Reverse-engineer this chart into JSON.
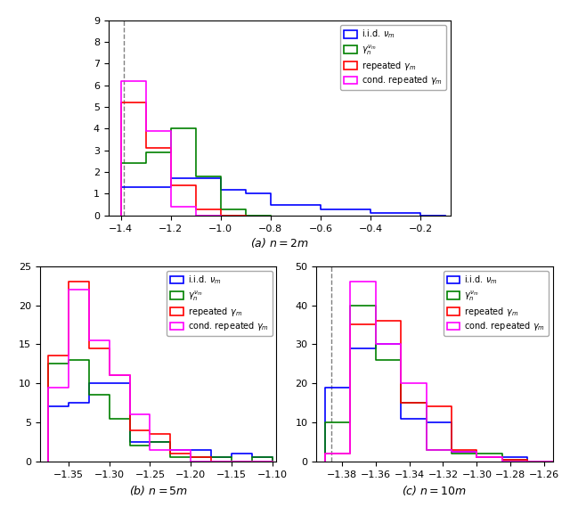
{
  "panel_a": {
    "title": "(a) $n = 2m$",
    "xlim": [
      -1.45,
      -0.08
    ],
    "ylim": [
      0,
      9
    ],
    "yticks": [
      0,
      1,
      2,
      3,
      4,
      5,
      6,
      7,
      8,
      9
    ],
    "xticks": [
      -1.4,
      -1.2,
      -1.0,
      -0.8,
      -0.6,
      -0.4,
      -0.2
    ],
    "dashed_x": -1.3863,
    "blue_bins": [
      -1.4,
      -1.3,
      -1.2,
      -1.1,
      -1.0,
      -0.9,
      -0.8,
      -0.7,
      -0.6,
      -0.5,
      -0.4,
      -0.3,
      -0.2,
      -0.1
    ],
    "blue_vals": [
      1.3,
      1.3,
      1.7,
      1.7,
      1.2,
      1.0,
      0.5,
      0.5,
      0.3,
      0.3,
      0.1,
      0.1,
      0.0
    ],
    "green_bins": [
      -1.4,
      -1.3,
      -1.2,
      -1.1,
      -1.0,
      -0.9,
      -0.8
    ],
    "green_vals": [
      2.4,
      2.9,
      4.0,
      1.8,
      0.3,
      0.0
    ],
    "red_bins": [
      -1.4,
      -1.3,
      -1.2,
      -1.1,
      -1.0,
      -0.9
    ],
    "red_vals": [
      5.2,
      3.1,
      1.4,
      0.3,
      0.0
    ],
    "magenta_bins": [
      -1.4,
      -1.3,
      -1.2,
      -1.1,
      -1.0
    ],
    "magenta_vals": [
      6.2,
      3.9,
      0.4,
      0.0
    ]
  },
  "panel_b": {
    "title": "(b) $n = 5m$",
    "xlim": [
      -1.385,
      -1.095
    ],
    "ylim": [
      0,
      25
    ],
    "yticks": [
      0,
      5,
      10,
      15,
      20,
      25
    ],
    "xticks": [
      -1.35,
      -1.3,
      -1.25,
      -1.2,
      -1.15,
      -1.1
    ],
    "dashed_x": -1.3863,
    "blue_bins": [
      -1.375,
      -1.35,
      -1.325,
      -1.3,
      -1.275,
      -1.25,
      -1.225,
      -1.2,
      -1.175,
      -1.15,
      -1.125,
      -1.1
    ],
    "blue_vals": [
      7.0,
      7.5,
      10.0,
      10.0,
      2.5,
      2.5,
      1.5,
      1.5,
      0.5,
      1.0,
      0.5
    ],
    "green_bins": [
      -1.375,
      -1.35,
      -1.325,
      -1.3,
      -1.275,
      -1.25,
      -1.225,
      -1.2,
      -1.175,
      -1.15,
      -1.125,
      -1.1
    ],
    "green_vals": [
      12.5,
      13.0,
      8.5,
      5.5,
      2.0,
      2.5,
      0.5,
      0.5,
      0.5,
      0.0,
      0.5
    ],
    "red_bins": [
      -1.375,
      -1.35,
      -1.325,
      -1.3,
      -1.275,
      -1.25,
      -1.225,
      -1.2,
      -1.175,
      -1.15,
      -1.125,
      -1.1
    ],
    "red_vals": [
      13.5,
      23.0,
      14.5,
      11.0,
      4.0,
      3.5,
      1.0,
      0.5,
      0.0,
      0.0,
      0.0
    ],
    "magenta_bins": [
      -1.375,
      -1.35,
      -1.325,
      -1.3,
      -1.275,
      -1.25,
      -1.225,
      -1.2,
      -1.175,
      -1.15,
      -1.125,
      -1.1
    ],
    "magenta_vals": [
      9.5,
      22.0,
      15.5,
      11.0,
      6.0,
      1.5,
      1.5,
      0.0,
      0.0,
      0.0,
      0.0
    ]
  },
  "panel_c": {
    "title": "(c) $n = 10m$",
    "xlim": [
      -1.395,
      -1.255
    ],
    "ylim": [
      0,
      50
    ],
    "yticks": [
      0,
      10,
      20,
      30,
      40,
      50
    ],
    "xticks": [
      -1.38,
      -1.36,
      -1.34,
      -1.32,
      -1.3,
      -1.28,
      -1.26
    ],
    "dashed_x": -1.3863,
    "blue_bins": [
      -1.39,
      -1.375,
      -1.36,
      -1.345,
      -1.33,
      -1.315,
      -1.3,
      -1.285,
      -1.27,
      -1.255
    ],
    "blue_vals": [
      19.0,
      29.0,
      30.0,
      11.0,
      10.0,
      2.5,
      1.0,
      1.0,
      0.0
    ],
    "green_bins": [
      -1.39,
      -1.375,
      -1.36,
      -1.345,
      -1.33,
      -1.315,
      -1.3,
      -1.285,
      -1.27,
      -1.255
    ],
    "green_vals": [
      10.0,
      40.0,
      26.0,
      15.0,
      3.0,
      2.0,
      2.0,
      0.5,
      0.0
    ],
    "red_bins": [
      -1.39,
      -1.375,
      -1.36,
      -1.345,
      -1.33,
      -1.315,
      -1.3,
      -1.285,
      -1.27,
      -1.255
    ],
    "red_vals": [
      2.0,
      35.0,
      36.0,
      15.0,
      14.0,
      3.0,
      1.0,
      0.5,
      0.0
    ],
    "magenta_bins": [
      -1.39,
      -1.375,
      -1.36,
      -1.345,
      -1.33,
      -1.315,
      -1.3,
      -1.285,
      -1.27,
      -1.255
    ],
    "magenta_vals": [
      2.0,
      46.0,
      30.0,
      20.0,
      3.0,
      2.5,
      1.0,
      0.0,
      0.0
    ]
  },
  "legend_labels": [
    "i.i.d. $\\nu_m$",
    "$\\gamma_n^{\\nu_m}$",
    "repeated $\\gamma_m$",
    "cond. repeated $\\gamma_m$"
  ],
  "colors": [
    "blue",
    "green",
    "red",
    "magenta"
  ]
}
